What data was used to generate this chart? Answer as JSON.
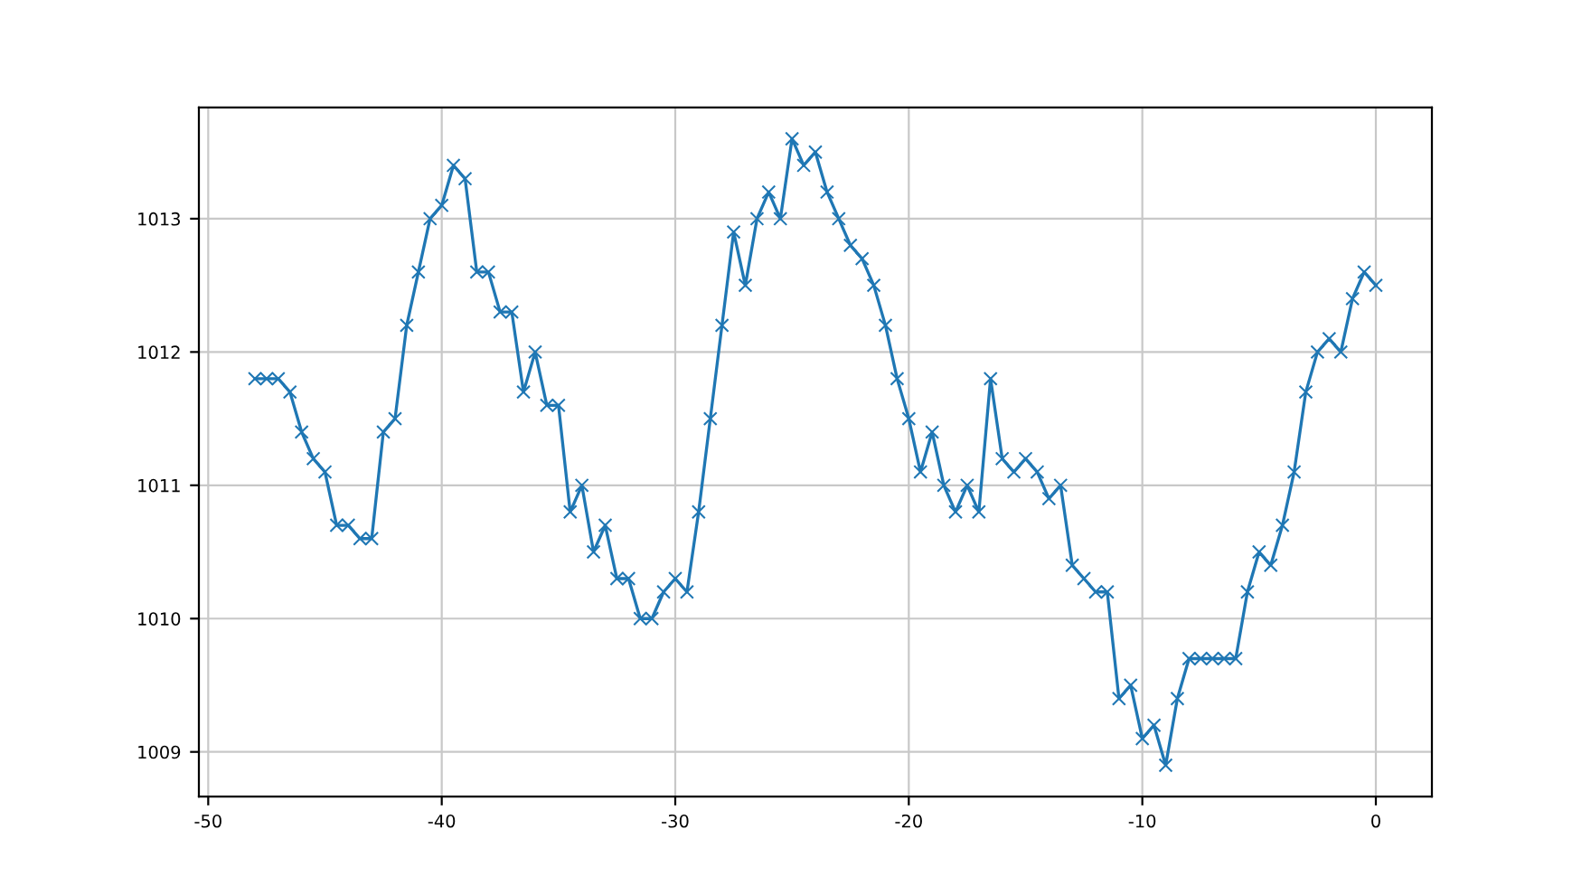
{
  "chart_data": {
    "type": "line",
    "marker": "cross",
    "grid": true,
    "x": [
      -48,
      -47.5,
      -47,
      -46.5,
      -46,
      -45.5,
      -45,
      -44.5,
      -44,
      -43.5,
      -43,
      -42.5,
      -42,
      -41.5,
      -41,
      -40.5,
      -40,
      -39.5,
      -39,
      -38.5,
      -38,
      -37.5,
      -37,
      -36.5,
      -36,
      -35.5,
      -35,
      -34.5,
      -34,
      -33.5,
      -33,
      -32.5,
      -32,
      -31.5,
      -31,
      -30.5,
      -30,
      -29.5,
      -29,
      -28.5,
      -28,
      -27.5,
      -27,
      -26.5,
      -26,
      -25.5,
      -25,
      -24.5,
      -24,
      -23.5,
      -23,
      -22.5,
      -22,
      -21.5,
      -21,
      -20.5,
      -20,
      -19.5,
      -19,
      -18.5,
      -18,
      -17.5,
      -17,
      -16.5,
      -16,
      -15.5,
      -15,
      -14.5,
      -14,
      -13.5,
      -13,
      -12.5,
      -12,
      -11.5,
      -11,
      -10.5,
      -10,
      -9.5,
      -9,
      -8.5,
      -8,
      -7.5,
      -7,
      -6.5,
      -6,
      -5.5,
      -5,
      -4.5,
      -4,
      -3.5,
      -3,
      -2.5,
      -2,
      -1.5,
      -1,
      -0.5,
      0
    ],
    "series": [
      {
        "color": "#1f77b4",
        "values": [
          1011.8,
          1011.8,
          1011.8,
          1011.7,
          1011.4,
          1011.2,
          1011.1,
          1010.7,
          1010.7,
          1010.6,
          1010.6,
          1011.4,
          1011.5,
          1012.2,
          1012.6,
          1013.0,
          1013.1,
          1013.4,
          1013.3,
          1012.6,
          1012.6,
          1012.3,
          1012.3,
          1011.7,
          1012.0,
          1011.6,
          1011.6,
          1010.8,
          1011.0,
          1010.5,
          1010.7,
          1010.3,
          1010.3,
          1010.0,
          1010.0,
          1010.2,
          1010.3,
          1010.2,
          1010.8,
          1011.5,
          1012.2,
          1012.9,
          1012.5,
          1013.0,
          1013.2,
          1013.0,
          1013.6,
          1013.4,
          1013.5,
          1013.2,
          1013.0,
          1012.8,
          1012.7,
          1012.5,
          1012.2,
          1011.8,
          1011.5,
          1011.1,
          1011.4,
          1011.0,
          1010.8,
          1011.0,
          1010.8,
          1011.8,
          1011.2,
          1011.1,
          1011.2,
          1011.1,
          1010.9,
          1011.0,
          1010.4,
          1010.3,
          1010.2,
          1010.2,
          1009.4,
          1009.5,
          1009.1,
          1009.2,
          1008.9,
          1009.4,
          1009.7,
          1009.7,
          1009.7,
          1009.7,
          1009.7,
          1010.2,
          1010.5,
          1010.4,
          1010.7,
          1011.1,
          1011.7,
          1012.0,
          1012.1,
          1012.0,
          1012.4,
          1012.6,
          1012.5
        ]
      }
    ],
    "xlim": [
      -50.4,
      2.4
    ],
    "ylim": [
      1008.665,
      1013.835
    ],
    "xticks": [
      -50,
      -40,
      -30,
      -20,
      -10,
      0
    ],
    "yticks": [
      1009,
      1010,
      1011,
      1012,
      1013
    ]
  }
}
